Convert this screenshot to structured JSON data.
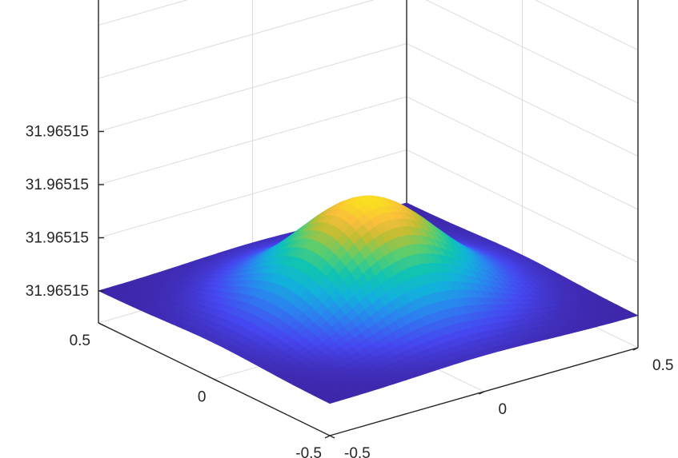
{
  "chart_data": {
    "type": "surface",
    "title": "",
    "xlabel": "",
    "ylabel": "",
    "zlabel": "",
    "grid": true,
    "view": "3d-default",
    "colormap": "parula",
    "x_range": [
      -0.5,
      0.5
    ],
    "y_range": [
      -0.5,
      0.5
    ],
    "x_ticks": [
      {
        "value": -0.5,
        "label": "-0.5"
      },
      {
        "value": 0,
        "label": "0"
      },
      {
        "value": 0.5,
        "label": "0.5"
      }
    ],
    "y_ticks": [
      {
        "value": -0.5,
        "label": "-0.5"
      },
      {
        "value": 0,
        "label": "0"
      },
      {
        "value": 0.5,
        "label": "0.5"
      }
    ],
    "z_ticks": [
      {
        "value": 0,
        "label": "31.96515"
      },
      {
        "value": 1,
        "label": "31.96515"
      },
      {
        "value": 2,
        "label": "31.96515"
      },
      {
        "value": 3,
        "label": "31.96515"
      }
    ],
    "surface": {
      "description": "single smooth peak centred at the origin",
      "center": [
        0,
        0
      ],
      "peak_height": 1.95,
      "base_height": 0,
      "width": 0.28
    }
  }
}
